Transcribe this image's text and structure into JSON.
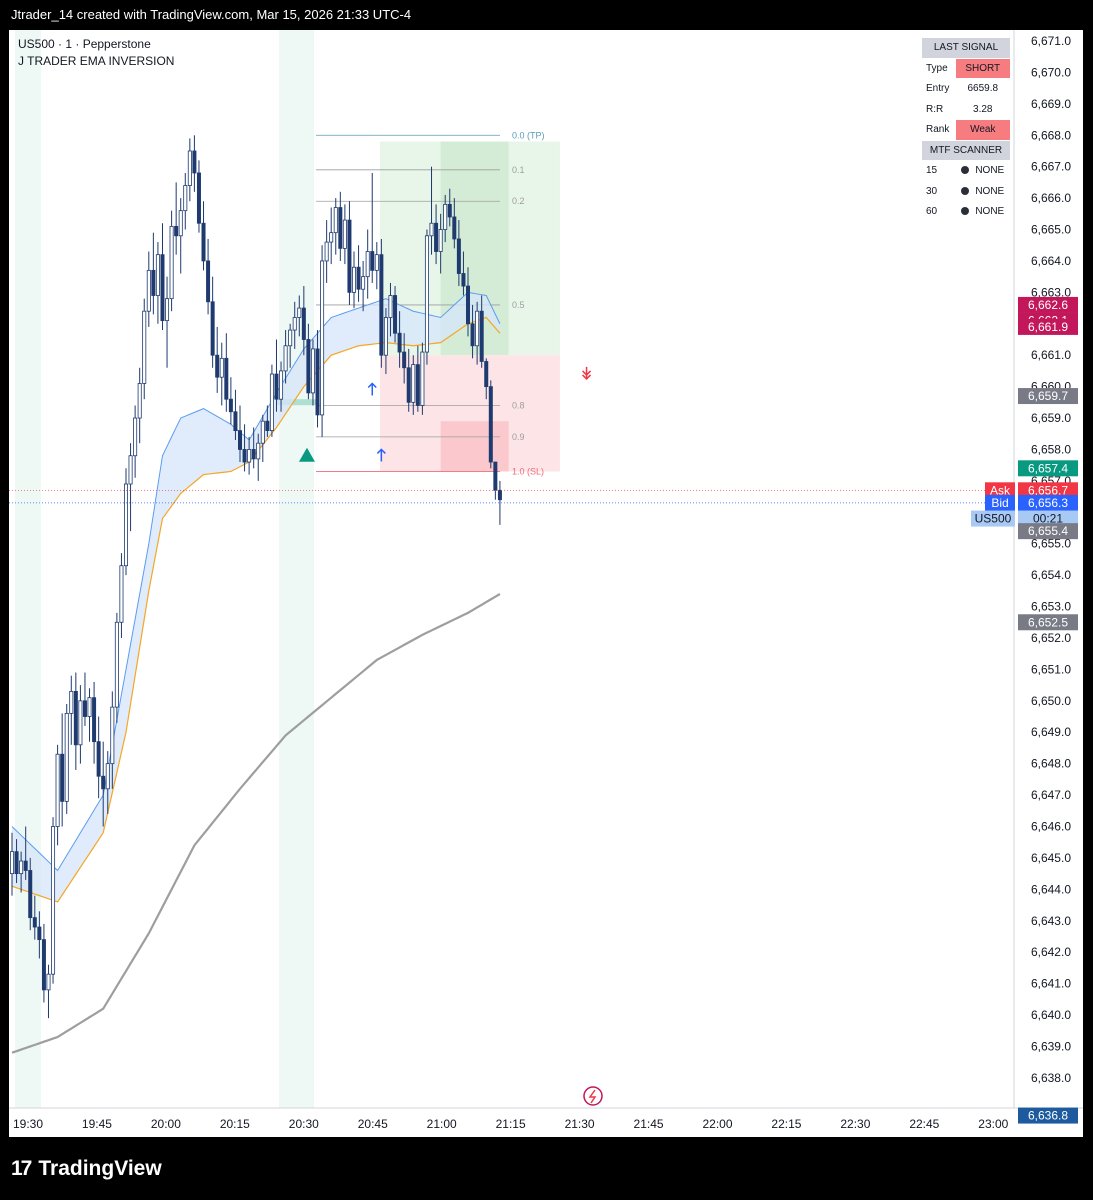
{
  "header": {
    "title": "Jtrader_14 created with TradingView.com, Mar 15, 2026 21:33 UTC-4"
  },
  "legend": {
    "symbol_line": "US500 · 1 · Pepperstone",
    "indicator": "J TRADER EMA INVERSION"
  },
  "signal_table": {
    "last_signal_title": "LAST SIGNAL",
    "rows": [
      {
        "label": "Type",
        "value": "SHORT",
        "highlight": true
      },
      {
        "label": "Entry",
        "value": "6659.8",
        "highlight": false
      },
      {
        "label": "R:R",
        "value": "3.28",
        "highlight": false
      },
      {
        "label": "Rank",
        "value": "Weak",
        "highlight": true
      }
    ],
    "scanner_title": "MTF SCANNER",
    "scanner_rows": [
      {
        "label": "15",
        "value": "NONE"
      },
      {
        "label": "30",
        "value": "NONE"
      },
      {
        "label": "60",
        "value": "NONE"
      }
    ]
  },
  "chart_data": {
    "type": "candlestick",
    "symbol": "US500",
    "ylim": [
      6637.0,
      6671.5
    ],
    "y_ticks": [
      "6,671.0",
      "6,670.0",
      "6,669.0",
      "6,668.0",
      "6,667.0",
      "6,666.0",
      "6,665.0",
      "6,664.0",
      "6,663.0",
      "6,662.0",
      "6,661.0",
      "6,660.0",
      "6,659.0",
      "6,658.0",
      "6,657.0",
      "6,656.0",
      "6,655.0",
      "6,654.0",
      "6,653.0",
      "6,652.0",
      "6,651.0",
      "6,650.0",
      "6,649.0",
      "6,648.0",
      "6,647.0",
      "6,646.0",
      "6,645.0",
      "6,644.0",
      "6,643.0",
      "6,642.0",
      "6,641.0",
      "6,640.0",
      "6,639.0",
      "6,638.0"
    ],
    "x_ticks": [
      "19:30",
      "19:45",
      "20:00",
      "20:15",
      "20:30",
      "20:45",
      "21:00",
      "21:15",
      "21:30",
      "21:45",
      "22:00",
      "22:15",
      "22:30",
      "22:45",
      "23:00"
    ],
    "price_labels": [
      {
        "text": "6,662.6",
        "value": 6662.6,
        "color": "#c2185b"
      },
      {
        "text": "6,662.1",
        "value": 6662.1,
        "color": "#c2185b"
      },
      {
        "text": "6,661.9",
        "value": 6661.9,
        "color": "#c2185b"
      },
      {
        "text": "6,659.7",
        "value": 6659.7,
        "color": "#787b86"
      },
      {
        "text": "6,657.4",
        "value": 6657.4,
        "color": "#089981"
      },
      {
        "text": "6,656.7",
        "value": 6656.7,
        "color": "#f23645",
        "tag": "Ask"
      },
      {
        "text": "6,656.3",
        "value": 6656.3,
        "color": "#2962ff",
        "tag": "Bid"
      },
      {
        "text": "00:21",
        "value": 6655.8,
        "color": "#a9c9f5",
        "tag": "US500"
      },
      {
        "text": "6,655.4",
        "value": 6655.4,
        "color": "#787b86"
      },
      {
        "text": "6,652.5",
        "value": 6652.5,
        "color": "#787b86"
      },
      {
        "text": "6,636.8",
        "value": 6636.8,
        "color": "#1e5a9e"
      }
    ],
    "fib_levels": [
      {
        "label": "0.0 (TP)",
        "value": 6668.0
      },
      {
        "label": "0.1",
        "value": 6666.9
      },
      {
        "label": "0.2",
        "value": 6665.9
      },
      {
        "label": "0.5",
        "value": 6662.6
      },
      {
        "label": "0.8",
        "value": 6659.4
      },
      {
        "label": "0.9",
        "value": 6658.4
      },
      {
        "label": "1.0 (SL)",
        "value": 6657.3
      }
    ],
    "candles": [
      [
        6644.5,
        6645.8,
        6643.8,
        6645.2
      ],
      [
        6645.2,
        6645.6,
        6644.2,
        6644.5
      ],
      [
        6644.5,
        6645.2,
        6643.9,
        6644.9
      ],
      [
        6644.9,
        6646.0,
        6644.3,
        6644.6
      ],
      [
        6644.6,
        6645.0,
        6642.7,
        6643.1
      ],
      [
        6643.1,
        6643.8,
        6642.4,
        6642.8
      ],
      [
        6642.8,
        6643.3,
        6641.8,
        6642.4
      ],
      [
        6642.4,
        6642.9,
        6640.4,
        6640.8
      ],
      [
        6640.8,
        6641.6,
        6639.9,
        6641.3
      ],
      [
        6641.3,
        6646.3,
        6641.0,
        6646.0
      ],
      [
        6646.0,
        6648.6,
        6645.4,
        6648.3
      ],
      [
        6648.3,
        6649.6,
        6646.0,
        6646.8
      ],
      [
        6646.8,
        6649.9,
        6646.4,
        6649.6
      ],
      [
        6649.6,
        6650.8,
        6648.6,
        6650.3
      ],
      [
        6650.3,
        6650.9,
        6647.8,
        6648.6
      ],
      [
        6648.6,
        6650.5,
        6648.0,
        6650.0
      ],
      [
        6650.0,
        6650.9,
        6649.2,
        6649.5
      ],
      [
        6649.5,
        6650.4,
        6648.7,
        6650.1
      ],
      [
        6650.1,
        6650.6,
        6648.0,
        6648.7
      ],
      [
        6648.7,
        6649.5,
        6646.9,
        6647.6
      ],
      [
        6647.6,
        6648.7,
        6646.0,
        6647.2
      ],
      [
        6647.2,
        6648.4,
        6646.4,
        6648.0
      ],
      [
        6648.0,
        6650.3,
        6647.2,
        6649.8
      ],
      [
        6649.8,
        6652.8,
        6649.3,
        6652.5
      ],
      [
        6652.5,
        6654.7,
        6652.0,
        6654.3
      ],
      [
        6654.3,
        6657.4,
        6654.0,
        6656.9
      ],
      [
        6656.9,
        6658.2,
        6655.4,
        6657.8
      ],
      [
        6657.8,
        6659.4,
        6657.1,
        6659.0
      ],
      [
        6659.0,
        6660.6,
        6658.2,
        6660.1
      ],
      [
        6660.1,
        6662.8,
        6659.6,
        6662.4
      ],
      [
        6662.4,
        6664.3,
        6661.9,
        6663.7
      ],
      [
        6663.7,
        6664.9,
        6662.3,
        6662.9
      ],
      [
        6662.9,
        6664.6,
        6662.0,
        6664.2
      ],
      [
        6664.2,
        6665.2,
        6661.8,
        6662.1
      ],
      [
        6662.1,
        6663.5,
        6660.6,
        6662.8
      ],
      [
        6662.8,
        6665.6,
        6662.4,
        6665.1
      ],
      [
        6665.1,
        6666.5,
        6664.2,
        6664.8
      ],
      [
        6664.8,
        6666.0,
        6663.6,
        6665.6
      ],
      [
        6665.6,
        6666.8,
        6665.0,
        6666.4
      ],
      [
        6666.4,
        6667.9,
        6665.9,
        6667.5
      ],
      [
        6667.5,
        6668.0,
        6666.2,
        6666.8
      ],
      [
        6666.8,
        6667.2,
        6664.9,
        6665.2
      ],
      [
        6665.2,
        6665.9,
        6663.7,
        6664.0
      ],
      [
        6664.0,
        6664.7,
        6662.3,
        6662.7
      ],
      [
        6662.7,
        6663.5,
        6660.6,
        6661.0
      ],
      [
        6661.0,
        6661.9,
        6659.8,
        6660.3
      ],
      [
        6660.3,
        6661.4,
        6659.4,
        6660.9
      ],
      [
        6660.9,
        6661.7,
        6659.2,
        6659.6
      ],
      [
        6659.6,
        6660.3,
        6658.8,
        6659.2
      ],
      [
        6659.2,
        6659.9,
        6658.3,
        6658.6
      ],
      [
        6658.6,
        6659.4,
        6657.6,
        6658.0
      ],
      [
        6658.0,
        6658.8,
        6657.3,
        6657.6
      ],
      [
        6657.6,
        6658.4,
        6657.2,
        6658.0
      ],
      [
        6658.0,
        6658.7,
        6657.4,
        6657.7
      ],
      [
        6657.7,
        6658.5,
        6657.0,
        6658.2
      ],
      [
        6658.2,
        6659.1,
        6657.6,
        6658.9
      ],
      [
        6658.9,
        6659.4,
        6658.4,
        6658.6
      ],
      [
        6658.6,
        6660.7,
        6658.4,
        6660.4
      ],
      [
        6660.4,
        6661.5,
        6659.2,
        6659.6
      ],
      [
        6659.6,
        6660.8,
        6659.2,
        6660.5
      ],
      [
        6660.5,
        6661.8,
        6660.1,
        6661.3
      ],
      [
        6661.3,
        6662.0,
        6660.6,
        6661.8
      ],
      [
        6661.8,
        6662.7,
        6661.2,
        6662.2
      ],
      [
        6662.2,
        6662.9,
        6661.6,
        6662.5
      ],
      [
        6662.5,
        6663.2,
        6661.0,
        6661.5
      ],
      [
        6661.5,
        6662.0,
        6659.6,
        6659.8
      ],
      [
        6659.8,
        6661.5,
        6659.4,
        6661.2
      ],
      [
        6661.2,
        6661.8,
        6658.7,
        6659.1
      ],
      [
        6659.1,
        6664.5,
        6658.4,
        6664.0
      ],
      [
        6664.0,
        6665.3,
        6663.3,
        6664.6
      ],
      [
        6664.6,
        6665.7,
        6663.9,
        6664.9
      ],
      [
        6664.9,
        6666.0,
        6664.2,
        6665.7
      ],
      [
        6665.7,
        6666.2,
        6664.0,
        6664.4
      ],
      [
        6664.4,
        6665.8,
        6663.9,
        6665.3
      ],
      [
        6665.3,
        6665.9,
        6662.6,
        6663.0
      ],
      [
        6663.0,
        6664.3,
        6662.5,
        6663.8
      ],
      [
        6663.8,
        6664.5,
        6662.7,
        6663.1
      ],
      [
        6663.1,
        6664.0,
        6662.4,
        6663.5
      ],
      [
        6663.5,
        6665.0,
        6662.8,
        6664.3
      ],
      [
        6664.3,
        6666.8,
        6663.3,
        6663.7
      ],
      [
        6663.7,
        6664.6,
        6663.1,
        6664.2
      ],
      [
        6664.2,
        6664.7,
        6660.6,
        6661.0
      ],
      [
        6661.0,
        6662.5,
        6660.4,
        6662.2
      ],
      [
        6662.2,
        6663.3,
        6661.6,
        6662.9
      ],
      [
        6662.9,
        6663.2,
        6661.4,
        6661.7
      ],
      [
        6661.7,
        6662.4,
        6660.6,
        6661.1
      ],
      [
        6661.1,
        6661.7,
        6660.1,
        6660.6
      ],
      [
        6660.6,
        6661.2,
        6659.2,
        6659.5
      ],
      [
        6659.5,
        6661.0,
        6659.1,
        6660.7
      ],
      [
        6660.7,
        6661.3,
        6659.2,
        6659.4
      ],
      [
        6659.4,
        6661.4,
        6659.1,
        6661.1
      ],
      [
        6661.1,
        6665.0,
        6660.7,
        6664.8
      ],
      [
        6664.8,
        6667.0,
        6664.2,
        6665.2
      ],
      [
        6665.2,
        6665.8,
        6663.9,
        6664.3
      ],
      [
        6664.3,
        6665.5,
        6663.6,
        6665.0
      ],
      [
        6665.0,
        6666.1,
        6664.6,
        6665.8
      ],
      [
        6665.8,
        6666.3,
        6665.1,
        6665.4
      ],
      [
        6665.4,
        6666.0,
        6664.4,
        6664.7
      ],
      [
        6664.7,
        6665.3,
        6663.2,
        6663.6
      ],
      [
        6663.6,
        6664.3,
        6662.9,
        6663.2
      ],
      [
        6663.2,
        6663.8,
        6661.6,
        6662.0
      ],
      [
        6662.0,
        6662.6,
        6660.9,
        6661.3
      ],
      [
        6661.3,
        6662.7,
        6660.7,
        6662.4
      ],
      [
        6662.4,
        6662.9,
        6660.6,
        6660.8
      ],
      [
        6660.8,
        6660.9,
        6659.6,
        6660.0
      ],
      [
        6660.0,
        6660.2,
        6657.4,
        6657.6
      ],
      [
        6657.6,
        6657.6,
        6656.4,
        6656.7
      ],
      [
        6656.7,
        6657.0,
        6655.6,
        6656.4
      ]
    ],
    "ema_fast_samples": [
      [
        0,
        6646.0
      ],
      [
        10,
        6644.6
      ],
      [
        20,
        6647.0
      ],
      [
        25,
        6651.0
      ],
      [
        30,
        6655.0
      ],
      [
        33,
        6657.8
      ],
      [
        37,
        6659.0
      ],
      [
        42,
        6659.3
      ],
      [
        48,
        6658.8
      ],
      [
        52,
        6658.3
      ],
      [
        58,
        6659.8
      ],
      [
        64,
        6661.2
      ],
      [
        70,
        6662.2
      ],
      [
        76,
        6662.5
      ],
      [
        82,
        6662.8
      ],
      [
        88,
        6662.4
      ],
      [
        94,
        6662.2
      ],
      [
        100,
        6663.0
      ],
      [
        104,
        6662.9
      ],
      [
        107,
        6662.0
      ]
    ],
    "ema_slow_samples": [
      [
        0,
        6644.1
      ],
      [
        10,
        6643.6
      ],
      [
        20,
        6645.8
      ],
      [
        25,
        6649.0
      ],
      [
        30,
        6653.5
      ],
      [
        33,
        6655.8
      ],
      [
        37,
        6656.6
      ],
      [
        42,
        6657.2
      ],
      [
        48,
        6657.3
      ],
      [
        52,
        6657.6
      ],
      [
        58,
        6658.7
      ],
      [
        64,
        6660.0
      ],
      [
        70,
        6661.0
      ],
      [
        76,
        6661.3
      ],
      [
        82,
        6661.4
      ],
      [
        88,
        6661.3
      ],
      [
        94,
        6661.4
      ],
      [
        100,
        6662.0
      ],
      [
        104,
        6662.2
      ],
      [
        107,
        6661.7
      ]
    ],
    "ema_long_samples": [
      [
        0,
        6638.8
      ],
      [
        10,
        6639.3
      ],
      [
        20,
        6640.2
      ],
      [
        30,
        6642.6
      ],
      [
        40,
        6645.4
      ],
      [
        50,
        6647.2
      ],
      [
        60,
        6648.9
      ],
      [
        70,
        6650.1
      ],
      [
        80,
        6651.3
      ],
      [
        90,
        6652.1
      ],
      [
        100,
        6652.8
      ],
      [
        107,
        6653.4
      ]
    ]
  }
}
